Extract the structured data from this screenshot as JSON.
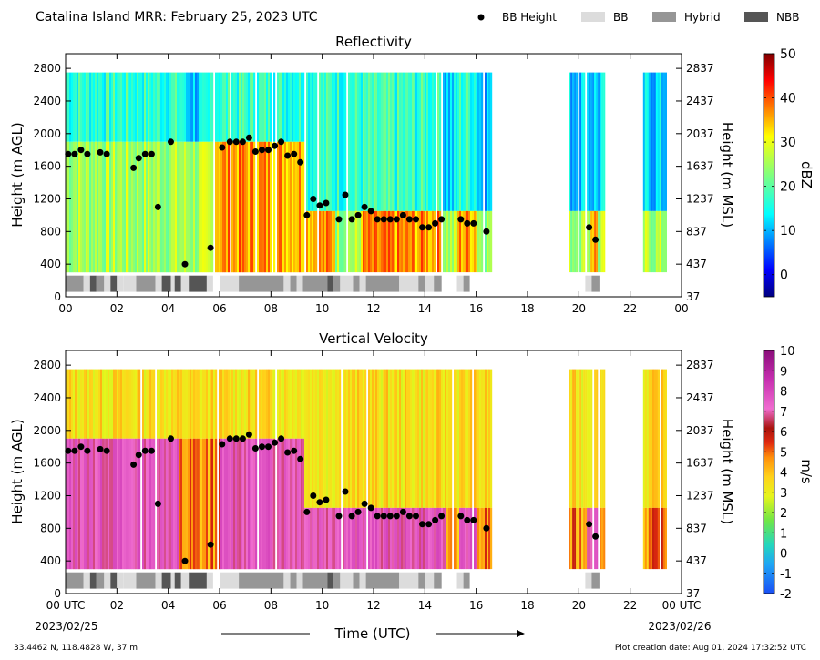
{
  "header": {
    "title": "Catalina Island MRR:  February 25, 2023 UTC",
    "legend": [
      {
        "label": "BB Height",
        "kind": "dot",
        "color": "#000000"
      },
      {
        "label": "BB",
        "kind": "patch",
        "color": "#dcdcdc"
      },
      {
        "label": "Hybrid",
        "kind": "patch",
        "color": "#969696"
      },
      {
        "label": "NBB",
        "kind": "patch",
        "color": "#555555"
      }
    ]
  },
  "footer": {
    "location": "33.4462 N, 118.4828 W, 37 m",
    "creation": "Plot creation date: Aug 01, 2024 17:32:52 UTC",
    "xlabel": "Time (UTC)",
    "start_date": "2023/02/25",
    "end_date": "2023/02/26"
  },
  "chart_data": [
    {
      "type": "heatmap",
      "title": "Reflectivity",
      "ylabel": "Height (m AGL)",
      "ylabel_right": "Height (m MSL)",
      "x_range_hours": [
        0,
        24
      ],
      "x_ticks": [
        "00",
        "02",
        "04",
        "06",
        "08",
        "10",
        "12",
        "14",
        "16",
        "18",
        "20",
        "22",
        "00"
      ],
      "ylim": [
        0,
        2980
      ],
      "y_ticks": [
        0,
        400,
        800,
        1200,
        1600,
        2000,
        2400,
        2800
      ],
      "y_ticks_right": [
        "37",
        "437",
        "837",
        "1237",
        "1637",
        "2037",
        "2437",
        "2837"
      ],
      "colorbar": {
        "label": "dBZ",
        "min": -5,
        "max": 50,
        "ticks": [
          0,
          10,
          20,
          30,
          40,
          50
        ],
        "colormap": "jet"
      },
      "data_coverage_hours": [
        [
          0,
          16.6
        ],
        [
          19.6,
          21.0
        ],
        [
          22.5,
          23.4
        ]
      ]
    },
    {
      "type": "heatmap",
      "title": "Vertical Velocity",
      "ylabel": "Height (m AGL)",
      "ylabel_right": "Height (m MSL)",
      "x_range_hours": [
        0,
        24
      ],
      "x_ticks": [
        "00 UTC",
        "02",
        "04",
        "06",
        "08",
        "10",
        "12",
        "14",
        "16",
        "18",
        "20",
        "22",
        "00 UTC"
      ],
      "ylim": [
        0,
        2980
      ],
      "y_ticks": [
        0,
        400,
        800,
        1200,
        1600,
        2000,
        2400,
        2800
      ],
      "y_ticks_right": [
        "37",
        "437",
        "837",
        "1237",
        "1637",
        "2037",
        "2437",
        "2837"
      ],
      "colorbar": {
        "label": "m/s",
        "min": -2,
        "max": 10,
        "ticks": [
          -2,
          -1,
          0,
          1,
          2,
          3,
          4,
          5,
          6,
          7,
          8,
          9,
          10
        ],
        "colormap": "velocity"
      },
      "data_coverage_hours": [
        [
          0,
          16.6
        ],
        [
          19.6,
          21.0
        ],
        [
          22.5,
          23.4
        ]
      ]
    }
  ],
  "bb_height_points": [
    {
      "t": 0.1,
      "h": 1750
    },
    {
      "t": 0.35,
      "h": 1750
    },
    {
      "t": 0.6,
      "h": 1800
    },
    {
      "t": 0.85,
      "h": 1750
    },
    {
      "t": 1.35,
      "h": 1770
    },
    {
      "t": 1.6,
      "h": 1750
    },
    {
      "t": 2.65,
      "h": 1580
    },
    {
      "t": 2.85,
      "h": 1700
    },
    {
      "t": 3.1,
      "h": 1750
    },
    {
      "t": 3.35,
      "h": 1750
    },
    {
      "t": 3.6,
      "h": 1100
    },
    {
      "t": 4.1,
      "h": 1900
    },
    {
      "t": 4.65,
      "h": 400
    },
    {
      "t": 5.65,
      "h": 600
    },
    {
      "t": 6.1,
      "h": 1830
    },
    {
      "t": 6.4,
      "h": 1900
    },
    {
      "t": 6.65,
      "h": 1900
    },
    {
      "t": 6.9,
      "h": 1900
    },
    {
      "t": 7.15,
      "h": 1950
    },
    {
      "t": 7.4,
      "h": 1780
    },
    {
      "t": 7.65,
      "h": 1800
    },
    {
      "t": 7.9,
      "h": 1800
    },
    {
      "t": 8.15,
      "h": 1850
    },
    {
      "t": 8.4,
      "h": 1900
    },
    {
      "t": 8.65,
      "h": 1730
    },
    {
      "t": 8.9,
      "h": 1750
    },
    {
      "t": 9.15,
      "h": 1650
    },
    {
      "t": 9.4,
      "h": 1000
    },
    {
      "t": 9.65,
      "h": 1200
    },
    {
      "t": 9.9,
      "h": 1120
    },
    {
      "t": 10.15,
      "h": 1150
    },
    {
      "t": 10.65,
      "h": 950
    },
    {
      "t": 10.9,
      "h": 1250
    },
    {
      "t": 11.15,
      "h": 950
    },
    {
      "t": 11.4,
      "h": 1000
    },
    {
      "t": 11.65,
      "h": 1100
    },
    {
      "t": 11.9,
      "h": 1050
    },
    {
      "t": 12.15,
      "h": 950
    },
    {
      "t": 12.4,
      "h": 950
    },
    {
      "t": 12.65,
      "h": 950
    },
    {
      "t": 12.9,
      "h": 950
    },
    {
      "t": 13.15,
      "h": 1000
    },
    {
      "t": 13.4,
      "h": 950
    },
    {
      "t": 13.65,
      "h": 950
    },
    {
      "t": 13.9,
      "h": 850
    },
    {
      "t": 14.15,
      "h": 850
    },
    {
      "t": 14.4,
      "h": 900
    },
    {
      "t": 14.65,
      "h": 950
    },
    {
      "t": 15.4,
      "h": 950
    },
    {
      "t": 15.65,
      "h": 900
    },
    {
      "t": 15.9,
      "h": 900
    },
    {
      "t": 16.4,
      "h": 800
    },
    {
      "t": 20.4,
      "h": 850
    },
    {
      "t": 20.65,
      "h": 700
    }
  ],
  "bb_type_segments": [
    {
      "t0": 0.0,
      "t1": 0.7,
      "type": "Hybrid"
    },
    {
      "t0": 0.7,
      "t1": 0.95,
      "type": "BB"
    },
    {
      "t0": 0.95,
      "t1": 1.2,
      "type": "NBB"
    },
    {
      "t0": 1.2,
      "t1": 1.5,
      "type": "Hybrid"
    },
    {
      "t0": 1.5,
      "t1": 1.75,
      "type": "BB"
    },
    {
      "t0": 1.75,
      "t1": 2.0,
      "type": "NBB"
    },
    {
      "t0": 2.0,
      "t1": 2.25,
      "type": "BB"
    },
    {
      "t0": 2.25,
      "t1": 2.75,
      "type": "BB"
    },
    {
      "t0": 2.75,
      "t1": 3.5,
      "type": "Hybrid"
    },
    {
      "t0": 3.5,
      "t1": 3.75,
      "type": "BB"
    },
    {
      "t0": 3.75,
      "t1": 4.1,
      "type": "NBB"
    },
    {
      "t0": 4.1,
      "t1": 4.25,
      "type": "BB"
    },
    {
      "t0": 4.25,
      "t1": 4.5,
      "type": "NBB"
    },
    {
      "t0": 4.5,
      "t1": 4.8,
      "type": "BB"
    },
    {
      "t0": 4.8,
      "t1": 5.5,
      "type": "NBB"
    },
    {
      "t0": 5.5,
      "t1": 5.75,
      "type": "BB"
    },
    {
      "t0": 6.0,
      "t1": 6.75,
      "type": "BB"
    },
    {
      "t0": 6.75,
      "t1": 8.5,
      "type": "Hybrid"
    },
    {
      "t0": 8.5,
      "t1": 8.75,
      "type": "BB"
    },
    {
      "t0": 8.75,
      "t1": 9.0,
      "type": "Hybrid"
    },
    {
      "t0": 9.0,
      "t1": 9.25,
      "type": "BB"
    },
    {
      "t0": 9.25,
      "t1": 10.2,
      "type": "Hybrid"
    },
    {
      "t0": 10.2,
      "t1": 10.45,
      "type": "NBB"
    },
    {
      "t0": 10.45,
      "t1": 10.7,
      "type": "Hybrid"
    },
    {
      "t0": 10.7,
      "t1": 11.2,
      "type": "BB"
    },
    {
      "t0": 11.2,
      "t1": 11.45,
      "type": "Hybrid"
    },
    {
      "t0": 11.45,
      "t1": 11.7,
      "type": "BB"
    },
    {
      "t0": 11.7,
      "t1": 13.0,
      "type": "Hybrid"
    },
    {
      "t0": 13.0,
      "t1": 13.75,
      "type": "BB"
    },
    {
      "t0": 13.75,
      "t1": 14.0,
      "type": "Hybrid"
    },
    {
      "t0": 14.0,
      "t1": 14.35,
      "type": "BB"
    },
    {
      "t0": 14.35,
      "t1": 14.65,
      "type": "Hybrid"
    },
    {
      "t0": 15.25,
      "t1": 15.5,
      "type": "BB"
    },
    {
      "t0": 15.5,
      "t1": 15.75,
      "type": "Hybrid"
    },
    {
      "t0": 20.25,
      "t1": 20.5,
      "type": "BB"
    },
    {
      "t0": 20.5,
      "t1": 20.8,
      "type": "Hybrid"
    }
  ]
}
